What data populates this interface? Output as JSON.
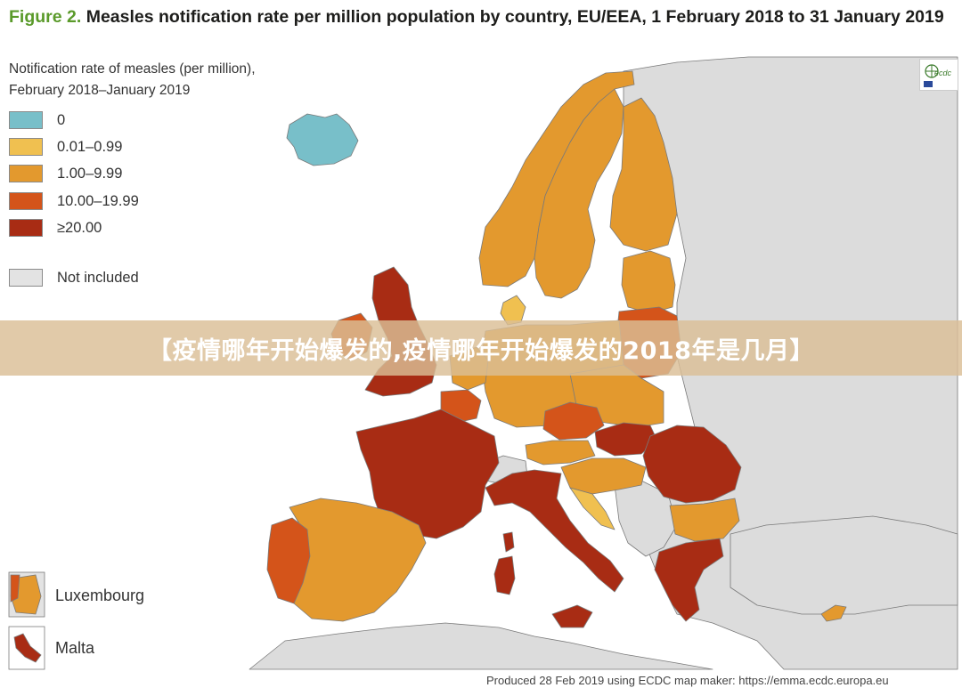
{
  "title": {
    "fig": "Figure 2.",
    "text": " Measles notification rate per million population by country, EU/EEA, 1 February 2018 to 31 January 2019"
  },
  "legend": {
    "heading_line1": "Notification rate of measles (per million),",
    "heading_line2": "February 2018–January 2019",
    "items": [
      {
        "label": "0",
        "color": "#78bfc9"
      },
      {
        "label": "0.01–0.99",
        "color": "#f0c050"
      },
      {
        "label": "1.00–9.99",
        "color": "#e3992e"
      },
      {
        "label": "10.00–19.99",
        "color": "#d4541a"
      },
      {
        "label": "≥20.00",
        "color": "#a82c14"
      },
      {
        "label": "Not included",
        "color": "#e3e3e3"
      }
    ]
  },
  "insets": {
    "luxembourg": "Luxembourg",
    "malta": "Malta"
  },
  "banner": "【疫情哪年开始爆发的,疫情哪年开始爆发的2018年是几月】",
  "footer": "Produced 28 Feb 2019 using ECDC map maker: https://emma.ecdc.europa.eu",
  "logo_text": "ecdc",
  "colors": {
    "sea": "#ffffff",
    "not_included": "#dcdcdc",
    "border": "#6b6b6b"
  }
}
